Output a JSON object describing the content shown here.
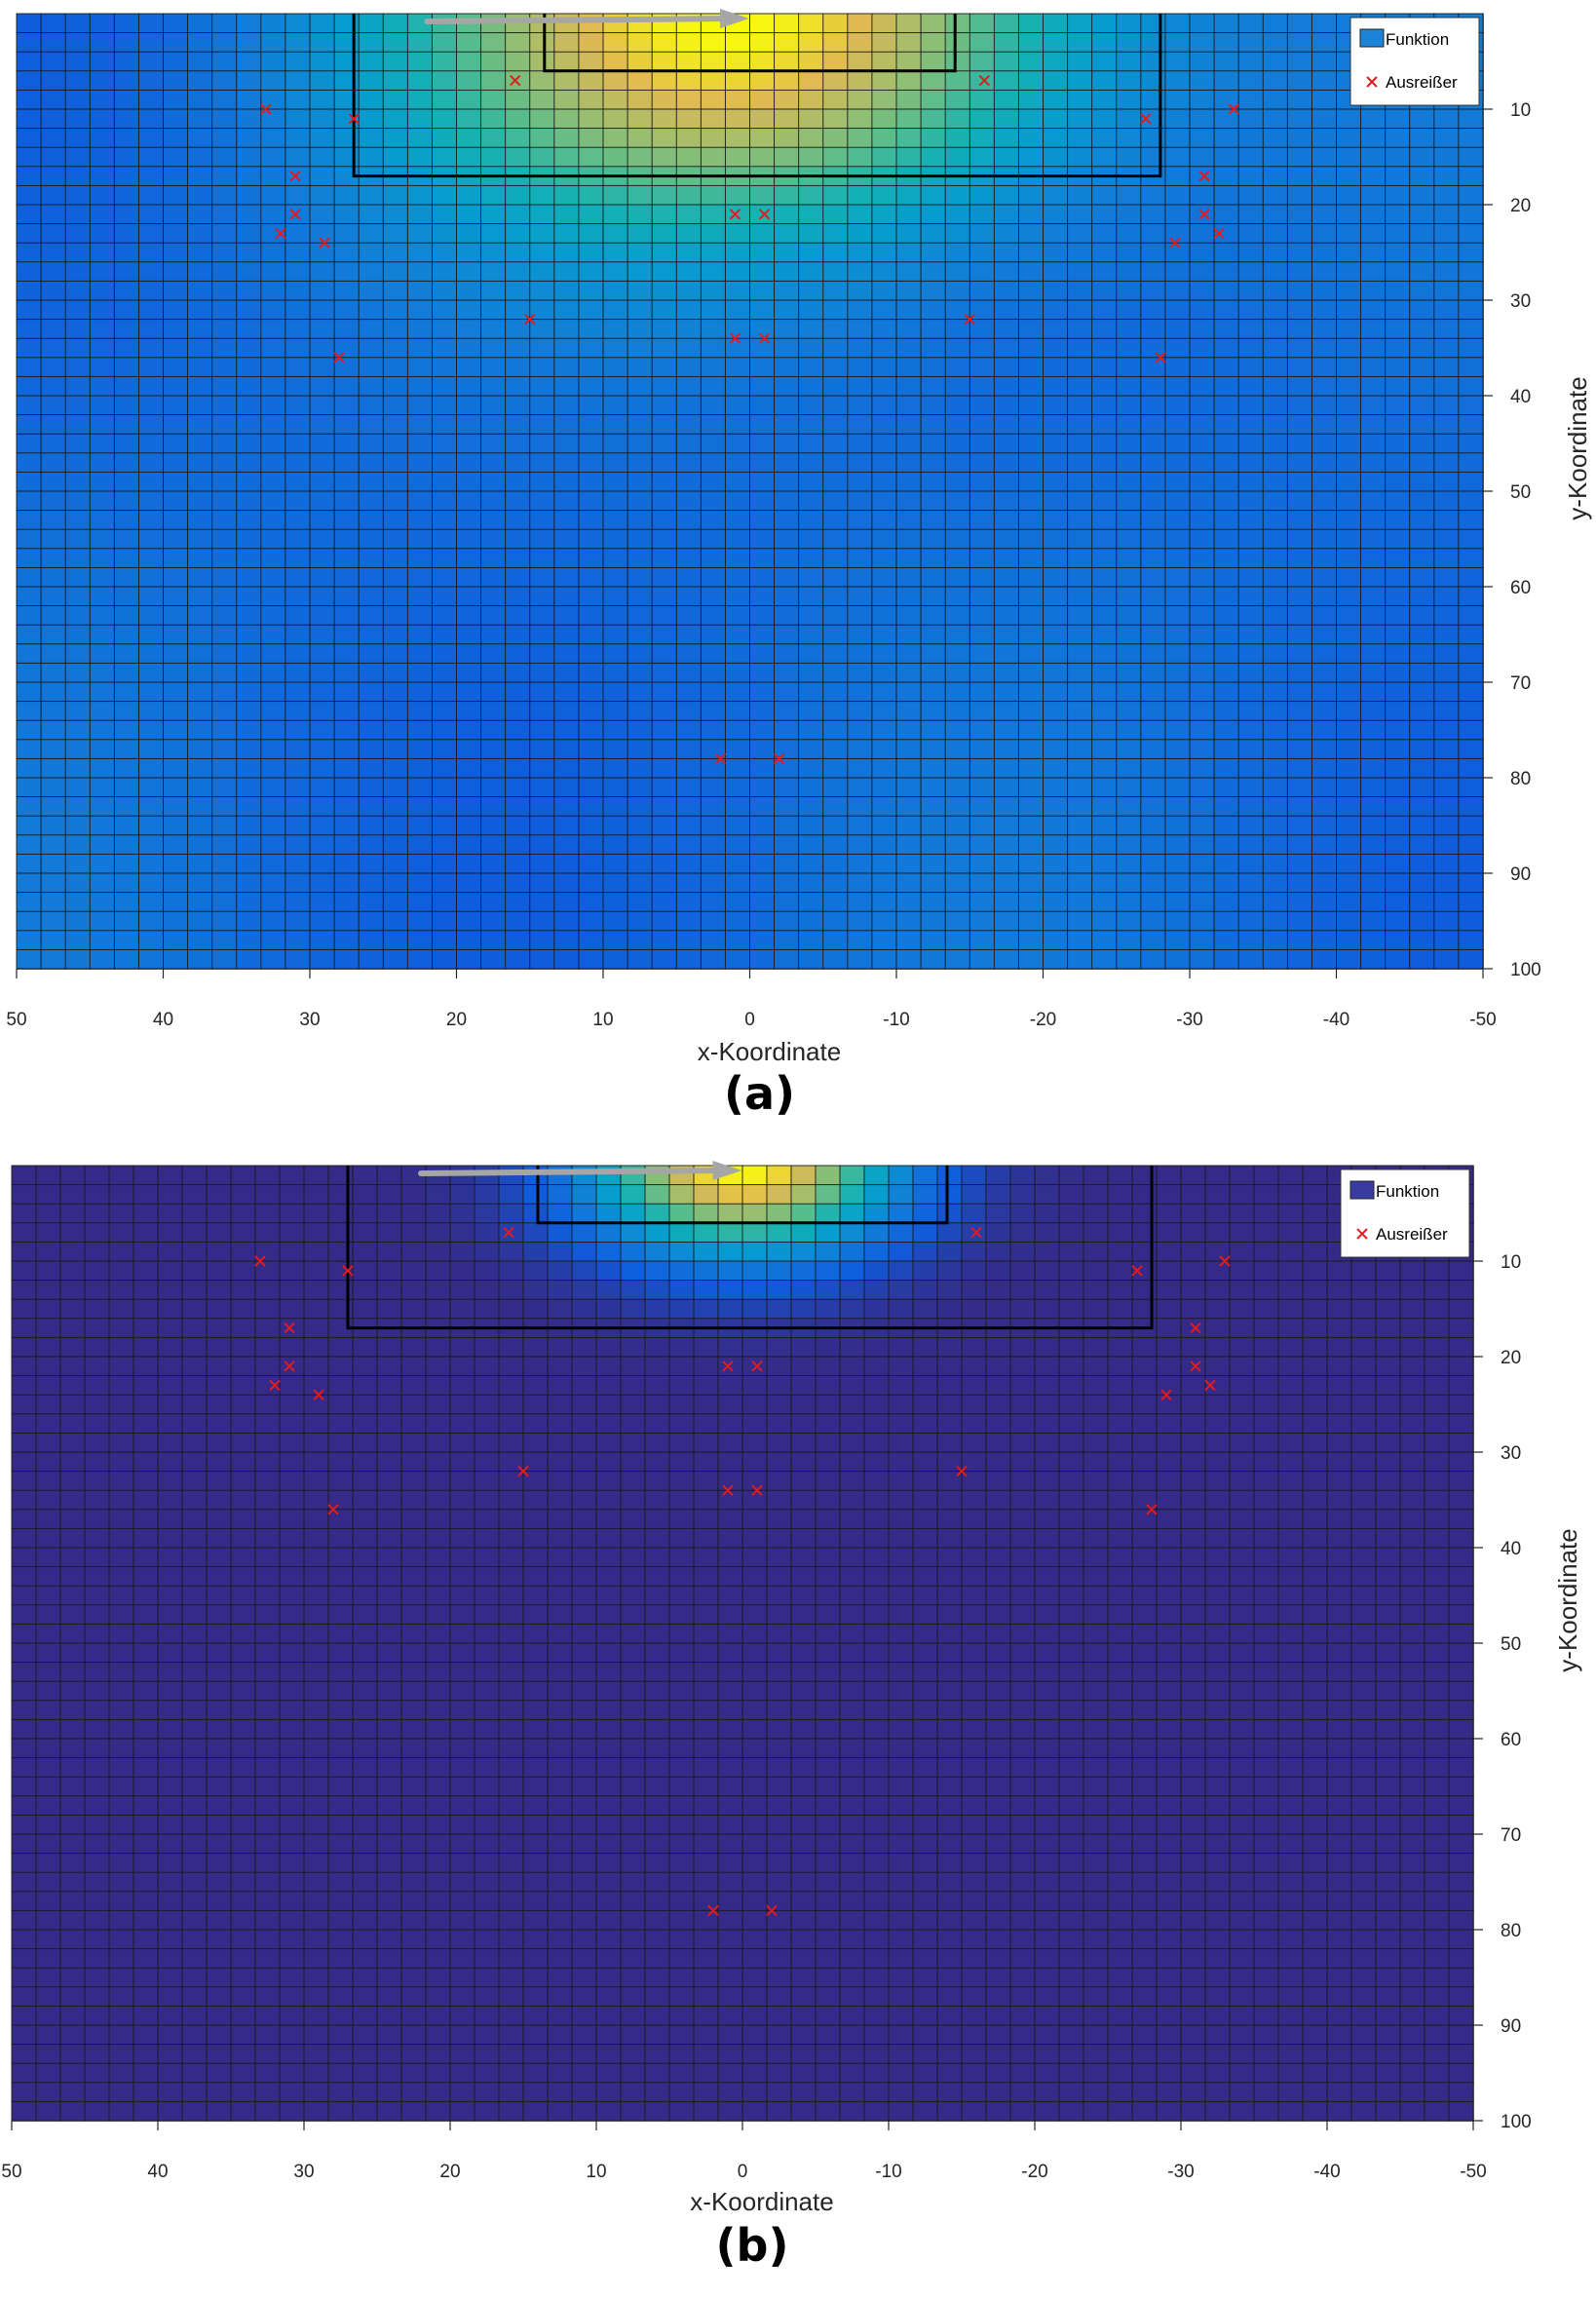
{
  "chart_data": [
    {
      "type": "heatmap",
      "panel_label": "(a)",
      "xlabel": "x-Koordinate",
      "ylabel": "y-Koordinate",
      "xlim": [
        50,
        -50
      ],
      "ylim": [
        0,
        100
      ],
      "x_ticks": [
        "50",
        "40",
        "30",
        "20",
        "10",
        "0",
        "-10",
        "-20",
        "-30",
        "-40",
        "-50"
      ],
      "y_ticks": [
        "10",
        "20",
        "30",
        "40",
        "50",
        "60",
        "70",
        "80",
        "90",
        "100"
      ],
      "legend": {
        "position": "top-right",
        "entries": [
          "Funktion",
          "Ausreißer"
        ]
      },
      "colormap": "parula",
      "grid": true,
      "field": {
        "peak_x": 0,
        "peak_y": 0,
        "peak_value": 1.0,
        "floor_value": 0.18,
        "spread_x": 22,
        "spread_y": 22
      },
      "outliers": [
        [
          33,
          10
        ],
        [
          27,
          11
        ],
        [
          16,
          7
        ],
        [
          -16,
          7
        ],
        [
          -27,
          11
        ],
        [
          -33,
          10
        ],
        [
          31,
          17
        ],
        [
          31,
          21
        ],
        [
          32,
          23
        ],
        [
          29,
          24
        ],
        [
          -31,
          17
        ],
        [
          -31,
          21
        ],
        [
          -32,
          23
        ],
        [
          -29,
          24
        ],
        [
          1,
          21
        ],
        [
          -1,
          21
        ],
        [
          15,
          32
        ],
        [
          -15,
          32
        ],
        [
          1,
          34
        ],
        [
          -1,
          34
        ],
        [
          28,
          36
        ],
        [
          -28,
          36
        ],
        [
          2,
          78
        ],
        [
          -2,
          78
        ]
      ]
    },
    {
      "type": "heatmap",
      "panel_label": "(b)",
      "xlabel": "x-Koordinate",
      "ylabel": "y-Koordinate",
      "xlim": [
        50,
        -50
      ],
      "ylim": [
        0,
        100
      ],
      "x_ticks": [
        "50",
        "40",
        "30",
        "20",
        "10",
        "0",
        "-10",
        "-20",
        "-30",
        "-40",
        "-50"
      ],
      "y_ticks": [
        "10",
        "20",
        "30",
        "40",
        "50",
        "60",
        "70",
        "80",
        "90",
        "100"
      ],
      "legend": {
        "position": "top-right",
        "entries": [
          "Funktion",
          "Ausreißer"
        ]
      },
      "colormap": "parula",
      "grid": true,
      "field": {
        "peak_x": 0,
        "peak_y": 0,
        "peak_value": 1.0,
        "floor_value": 0.0,
        "spread_x": 10,
        "spread_y": 9
      },
      "outliers": [
        [
          33,
          10
        ],
        [
          27,
          11
        ],
        [
          16,
          7
        ],
        [
          -16,
          7
        ],
        [
          -27,
          11
        ],
        [
          -33,
          10
        ],
        [
          31,
          17
        ],
        [
          31,
          21
        ],
        [
          32,
          23
        ],
        [
          29,
          24
        ],
        [
          -31,
          17
        ],
        [
          -31,
          21
        ],
        [
          -32,
          23
        ],
        [
          -29,
          24
        ],
        [
          1,
          21
        ],
        [
          -1,
          21
        ],
        [
          15,
          32
        ],
        [
          -15,
          32
        ],
        [
          1,
          34
        ],
        [
          -1,
          34
        ],
        [
          28,
          36
        ],
        [
          -28,
          36
        ],
        [
          2,
          78
        ],
        [
          -2,
          78
        ]
      ]
    }
  ],
  "colors": {
    "outlier": "#e41a1c",
    "arrow": "#a6a6a6",
    "box": "#000000",
    "legend_swatch_a": "#1a84d6",
    "legend_swatch_b": "#3a3b9e"
  }
}
